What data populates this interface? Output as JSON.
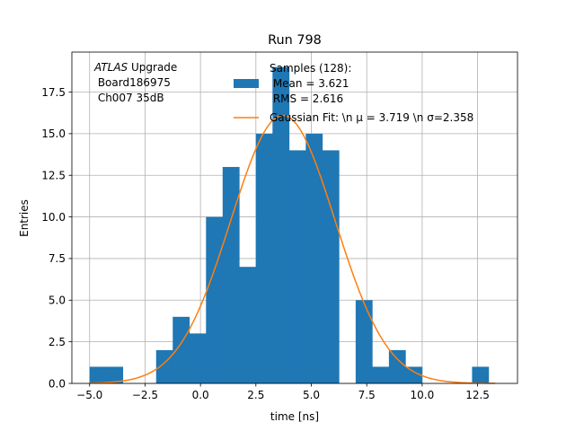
{
  "chart_data": {
    "type": "bar",
    "title": "Run 798",
    "xlabel": "time [ns]",
    "ylabel": "Entries",
    "xlim": [
      -5.8,
      14.3
    ],
    "ylim": [
      0,
      19.9
    ],
    "grid": true,
    "x_ticks": [
      -5.0,
      -2.5,
      0.0,
      2.5,
      5.0,
      7.5,
      10.0,
      12.5
    ],
    "x_tick_labels": [
      "−5.0",
      "−2.5",
      "0.0",
      "2.5",
      "5.0",
      "7.5",
      "10.0",
      "12.5"
    ],
    "y_ticks": [
      0.0,
      2.5,
      5.0,
      7.5,
      10.0,
      12.5,
      15.0,
      17.5
    ],
    "y_tick_labels": [
      "0.0",
      "2.5",
      "5.0",
      "7.5",
      "10.0",
      "12.5",
      "15.0",
      "17.5"
    ],
    "bin_edges": [
      -5.0,
      -4.25,
      -3.5,
      -2.75,
      -2.0,
      -1.25,
      -0.5,
      0.25,
      1.0,
      1.75,
      2.5,
      3.25,
      4.0,
      4.75,
      5.5,
      6.25,
      7.0,
      7.75,
      8.5,
      9.25,
      10.0,
      10.75,
      11.5,
      12.25,
      13.0
    ],
    "counts": [
      1,
      1,
      0,
      0,
      2,
      4,
      3,
      10,
      13,
      7,
      15,
      19,
      14,
      15,
      14,
      0,
      5,
      1,
      2,
      1,
      0,
      0,
      0,
      1
    ],
    "fit": {
      "type": "gaussian",
      "mu": 3.719,
      "sigma": 2.358,
      "amplitude": 16.1,
      "x_range": [
        -5.0,
        13.3
      ]
    },
    "annotation": {
      "line1_italic": "ATLAS",
      "line1_rest": " Upgrade",
      "line2": " Board186975",
      "line3": " Ch007 35dB"
    },
    "legend": {
      "placement": "top-right",
      "entries": [
        {
          "label_lines": [
            "Samples (128):",
            " Mean = 3.621",
            " RMS = 2.616"
          ],
          "kind": "patch"
        },
        {
          "label_lines": [
            "Gaussian Fit: \\n μ = 3.719 \\n σ=2.358"
          ],
          "kind": "line"
        }
      ]
    },
    "colors": {
      "bars": "#1f77b4",
      "fit": "#ff7f0e",
      "grid": "#b0b0b0"
    }
  }
}
